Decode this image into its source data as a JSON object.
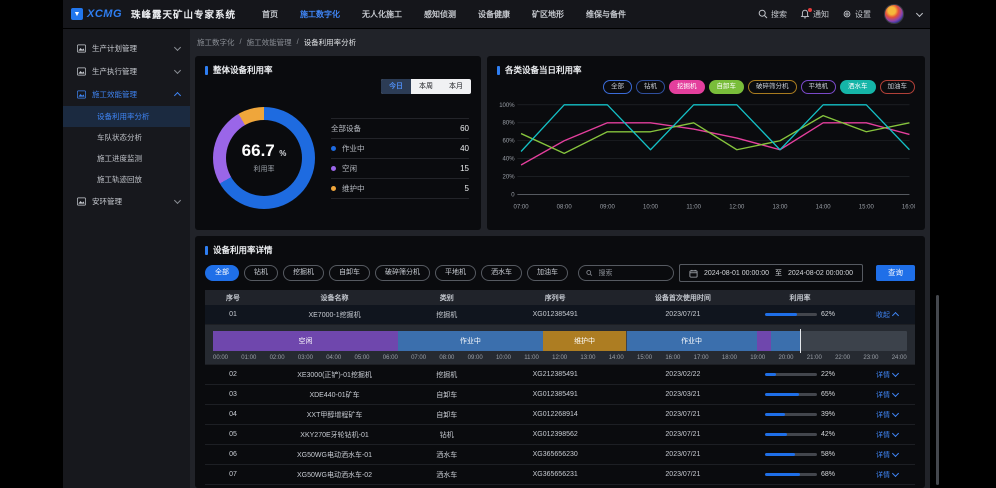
{
  "topbar": {
    "brand": "XCMG",
    "title": "珠峰露天矿山专家系统",
    "menu": [
      {
        "label": "首页",
        "active": false
      },
      {
        "label": "施工数字化",
        "active": true
      },
      {
        "label": "无人化施工",
        "active": false
      },
      {
        "label": "感知侦测",
        "active": false
      },
      {
        "label": "设备健康",
        "active": false
      },
      {
        "label": "矿区地形",
        "active": false
      },
      {
        "label": "维保与备件",
        "active": false
      }
    ],
    "search_label": "搜索",
    "notice_label": "通知",
    "settings_label": "设置"
  },
  "sidebar": {
    "items": [
      {
        "label": "生产计划管理",
        "expanded": false,
        "active": false,
        "children": []
      },
      {
        "label": "生产执行管理",
        "expanded": false,
        "active": false,
        "children": []
      },
      {
        "label": "施工效能管理",
        "expanded": true,
        "active": true,
        "children": [
          {
            "label": "设备利用率分析",
            "selected": true
          },
          {
            "label": "车队状态分析",
            "selected": false
          },
          {
            "label": "施工进度监测",
            "selected": false
          },
          {
            "label": "施工轨迹回放",
            "selected": false
          }
        ]
      },
      {
        "label": "安环管理",
        "expanded": false,
        "active": false,
        "children": []
      }
    ]
  },
  "breadcrumb": [
    "施工数字化",
    "施工效能管理",
    "设备利用率分析"
  ],
  "overall_panel": {
    "title": "整体设备利用率",
    "tabs": [
      {
        "label": "今日",
        "active": true
      },
      {
        "label": "本周",
        "active": false
      },
      {
        "label": "本月",
        "active": false
      }
    ]
  },
  "daily_panel": {
    "title": "各类设备当日利用率",
    "pills": [
      {
        "label": "全部",
        "variant": "outline",
        "color": "#3a6bd8"
      },
      {
        "label": "钻机",
        "variant": "outline",
        "color": "#2f4f9e"
      },
      {
        "label": "挖掘机",
        "variant": "solid",
        "color": "#e43f9d"
      },
      {
        "label": "自卸车",
        "variant": "solid",
        "color": "#79bd3a"
      },
      {
        "label": "破碎筛分机",
        "variant": "outline",
        "color": "#a87b1f"
      },
      {
        "label": "平地机",
        "variant": "outline",
        "color": "#7a49c9"
      },
      {
        "label": "洒水车",
        "variant": "solid",
        "color": "#15b5a8"
      },
      {
        "label": "加油车",
        "variant": "outline",
        "color": "#b04038"
      }
    ]
  },
  "chart_data": [
    {
      "type": "pie",
      "title": "整体设备利用率",
      "center_value": "66.7",
      "center_unit": "%",
      "center_label": "利用率",
      "total_label": "全部设备",
      "total": 60,
      "slices": [
        {
          "label": "作业中",
          "value": 40,
          "color": "#1e6be0"
        },
        {
          "label": "空闲",
          "value": 15,
          "color": "#9a66e8"
        },
        {
          "label": "维护中",
          "value": 5,
          "color": "#efa63b"
        }
      ]
    },
    {
      "type": "line",
      "title": "各类设备当日利用率",
      "x": [
        "07:00",
        "08:00",
        "09:00",
        "10:00",
        "11:00",
        "12:00",
        "13:00",
        "14:00",
        "15:00",
        "16:00"
      ],
      "ylim": [
        0,
        100
      ],
      "yticks": [
        0,
        20,
        40,
        60,
        80,
        100
      ],
      "ytick_labels": [
        "0",
        "20%",
        "40%",
        "60%",
        "80%",
        "100%"
      ],
      "series": [
        {
          "name": "挖掘机",
          "color": "#e43f9d",
          "values": [
            33,
            60,
            80,
            80,
            73,
            63,
            50,
            80,
            80,
            67
          ]
        },
        {
          "name": "自卸车",
          "color": "#86c43d",
          "values": [
            68,
            46,
            70,
            70,
            80,
            50,
            60,
            88,
            70,
            80
          ]
        },
        {
          "name": "洒水车",
          "color": "#14c0c6",
          "values": [
            48,
            100,
            100,
            50,
            100,
            100,
            50,
            100,
            100,
            50
          ]
        }
      ]
    }
  ],
  "detail_panel": {
    "title": "设备利用率详情",
    "filters": [
      {
        "label": "全部",
        "active": true
      },
      {
        "label": "钻机",
        "active": false
      },
      {
        "label": "挖掘机",
        "active": false
      },
      {
        "label": "自卸车",
        "active": false
      },
      {
        "label": "破碎筛分机",
        "active": false
      },
      {
        "label": "平地机",
        "active": false
      },
      {
        "label": "洒水车",
        "active": false
      },
      {
        "label": "加油车",
        "active": false
      }
    ],
    "search_placeholder": "搜索",
    "date_from": "2024-08-01 00:00:00",
    "date_separator": "至",
    "date_to": "2024-08-02 00:00:00",
    "query_label": "查询",
    "table": {
      "headers": [
        "序号",
        "设备名称",
        "类别",
        "序列号",
        "设备首次使用时间",
        "利用率",
        ""
      ],
      "rows": [
        {
          "no": "01",
          "name": "XE7000-1挖掘机",
          "type": "挖掘机",
          "serial": "XG012385491",
          "first_use": "2023/07/21",
          "utilization": 62,
          "action": "收起",
          "expanded": true
        },
        {
          "no": "02",
          "name": "XE3000(正铲)-01挖掘机",
          "type": "挖掘机",
          "serial": "XG212385491",
          "first_use": "2023/02/22",
          "utilization": 22,
          "action": "详情",
          "expanded": false
        },
        {
          "no": "03",
          "name": "XDE440-01矿车",
          "type": "自卸车",
          "serial": "XG012385491",
          "first_use": "2023/03/21",
          "utilization": 65,
          "action": "详情",
          "expanded": false
        },
        {
          "no": "04",
          "name": "XXT甲醇增程矿车",
          "type": "自卸车",
          "serial": "XG012268914",
          "first_use": "2023/07/21",
          "utilization": 39,
          "action": "详情",
          "expanded": false
        },
        {
          "no": "05",
          "name": "XKY270E牙轮钻机-01",
          "type": "钻机",
          "serial": "XG012398562",
          "first_use": "2023/07/21",
          "utilization": 42,
          "action": "详情",
          "expanded": false
        },
        {
          "no": "06",
          "name": "XG50WG电动洒水车-01",
          "type": "洒水车",
          "serial": "XG365656230",
          "first_use": "2023/07/21",
          "utilization": 58,
          "action": "详情",
          "expanded": false
        },
        {
          "no": "07",
          "name": "XG50WG电动洒水车-02",
          "type": "洒水车",
          "serial": "XG365656231",
          "first_use": "2023/07/21",
          "utilization": 68,
          "action": "详情",
          "expanded": false
        }
      ],
      "timeline": {
        "axis_labels": [
          "00:00",
          "01:00",
          "02:00",
          "03:00",
          "04:00",
          "05:00",
          "06:00",
          "07:00",
          "08:00",
          "09:00",
          "10:00",
          "11:00",
          "12:00",
          "13:00",
          "14:00",
          "15:00",
          "16:00",
          "17:00",
          "18:00",
          "19:00",
          "20:00",
          "21:00",
          "22:00",
          "23:00",
          "24:00"
        ],
        "hours": 24,
        "cursor_hour": 20.3,
        "status_colors": {
          "idle": "#6f47ad",
          "working": "#3b6fad",
          "maintenance": "#ad7d22"
        },
        "segments": [
          {
            "label": "空闲",
            "start": 0,
            "end": 6.4,
            "status": "idle"
          },
          {
            "label": "作业中",
            "start": 6.4,
            "end": 11.4,
            "status": "working"
          },
          {
            "label": "维护中",
            "start": 11.4,
            "end": 14.3,
            "status": "maintenance"
          },
          {
            "label": "作业中",
            "start": 14.3,
            "end": 18.8,
            "status": "working"
          },
          {
            "label": "",
            "start": 18.8,
            "end": 19.3,
            "status": "idle"
          },
          {
            "label": "",
            "start": 19.3,
            "end": 20.3,
            "status": "working"
          }
        ]
      }
    }
  }
}
